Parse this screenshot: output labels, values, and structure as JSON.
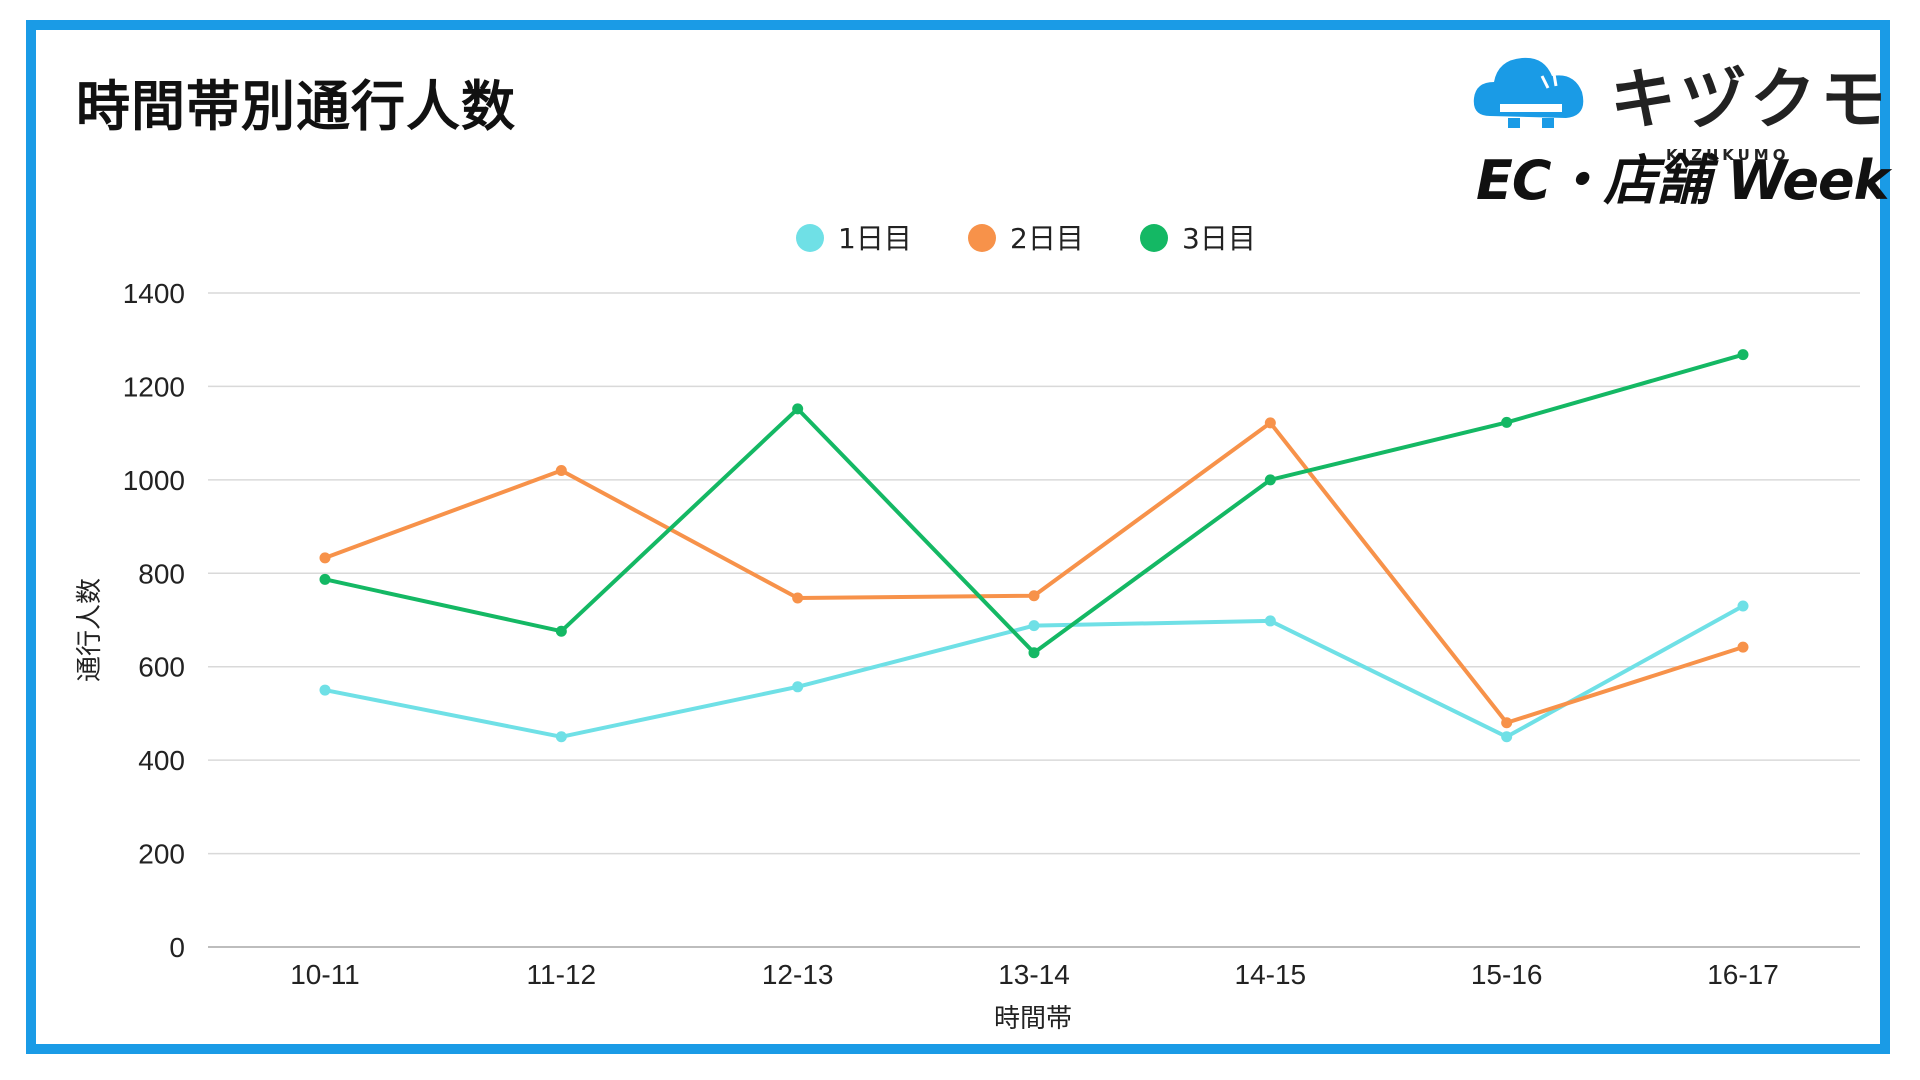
{
  "title": "時間帯別通行人数",
  "brand": {
    "name": "キヅクモ",
    "romaji": "KIZUKUMO",
    "event": "EC・店舗 Week",
    "logo_icon": "cloud-logo-icon",
    "logo_color": "#1a9be6"
  },
  "colors": {
    "frame": "#1a9be6",
    "grid": "#d9d9d9",
    "series": [
      "#6fe0e6",
      "#f7924a",
      "#14b864"
    ]
  },
  "chart_data": {
    "type": "line",
    "categories": [
      "10-11",
      "11-12",
      "12-13",
      "13-14",
      "14-15",
      "15-16",
      "16-17"
    ],
    "series": [
      {
        "name": "1日目",
        "values": [
          550,
          450,
          557,
          688,
          698,
          450,
          730
        ]
      },
      {
        "name": "2日目",
        "values": [
          833,
          1020,
          747,
          752,
          1122,
          480,
          642
        ]
      },
      {
        "name": "3日目",
        "values": [
          787,
          676,
          1152,
          630,
          1000,
          1123,
          1268
        ]
      }
    ],
    "xlabel": "時間帯",
    "ylabel": "通行人数",
    "ylim": [
      0,
      1400
    ],
    "yticks": [
      0,
      200,
      400,
      600,
      800,
      1000,
      1200,
      1400
    ],
    "grid": "horizontal",
    "legend": "top-center"
  }
}
